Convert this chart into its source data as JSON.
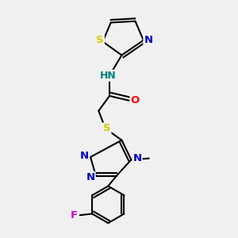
{
  "bg_color": "#f0f0f0",
  "atom_colors": {
    "C": "#000000",
    "N": "#0000cc",
    "O": "#ff0000",
    "S": "#cccc00",
    "H": "#008080",
    "F": "#cc00cc"
  },
  "bond_color": "#000000",
  "bond_lw": 1.5,
  "font_size_atom": 9.5
}
